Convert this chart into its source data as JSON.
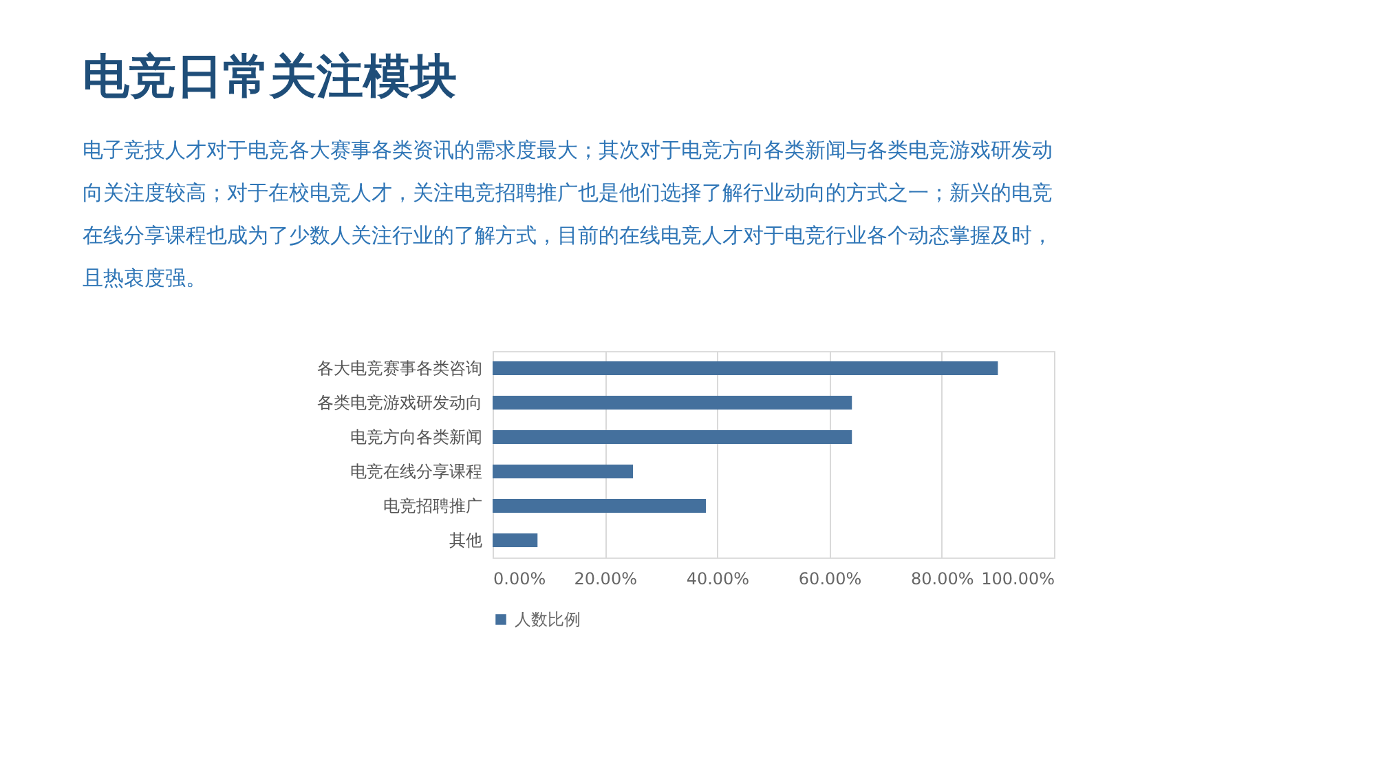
{
  "chart_data": {
    "type": "bar",
    "orientation": "horizontal",
    "title": "电竞日常关注模块",
    "subtitle": "电子竞技人才对于电竞各大赛事各类资讯的需求度最大；其次对于电竞方向各类新闻与各类电竞游戏研发动向关注度较高；对于在校电竞人才，关注电竞招聘推广也是他们选择了解行业动向的方式之一；新兴的电竞在线分享课程也成为了少数人关注行业的了解方式，目前的在线电竞人才对于电竞行业各个动态掌握及时，且热衷度强。",
    "categories": [
      "各大电竞赛事各类咨询",
      "各类电竞游戏研发动向",
      "电竞方向各类新闻",
      "电竞在线分享课程",
      "电竞招聘推广",
      "其他"
    ],
    "series": [
      {
        "name": "人数比例",
        "color": "#44709d",
        "values": [
          90,
          64,
          64,
          25,
          38,
          8
        ]
      }
    ],
    "xlim": [
      0,
      100
    ],
    "xticks": [
      {
        "value": 0,
        "label": "0.00%"
      },
      {
        "value": 20,
        "label": "20.00%"
      },
      {
        "value": 40,
        "label": "40.00%"
      },
      {
        "value": 60,
        "label": "60.00%"
      },
      {
        "value": 80,
        "label": "80.00%"
      },
      {
        "value": 100,
        "label": "100.00%"
      }
    ],
    "grid": "x",
    "legend": "bottom"
  }
}
